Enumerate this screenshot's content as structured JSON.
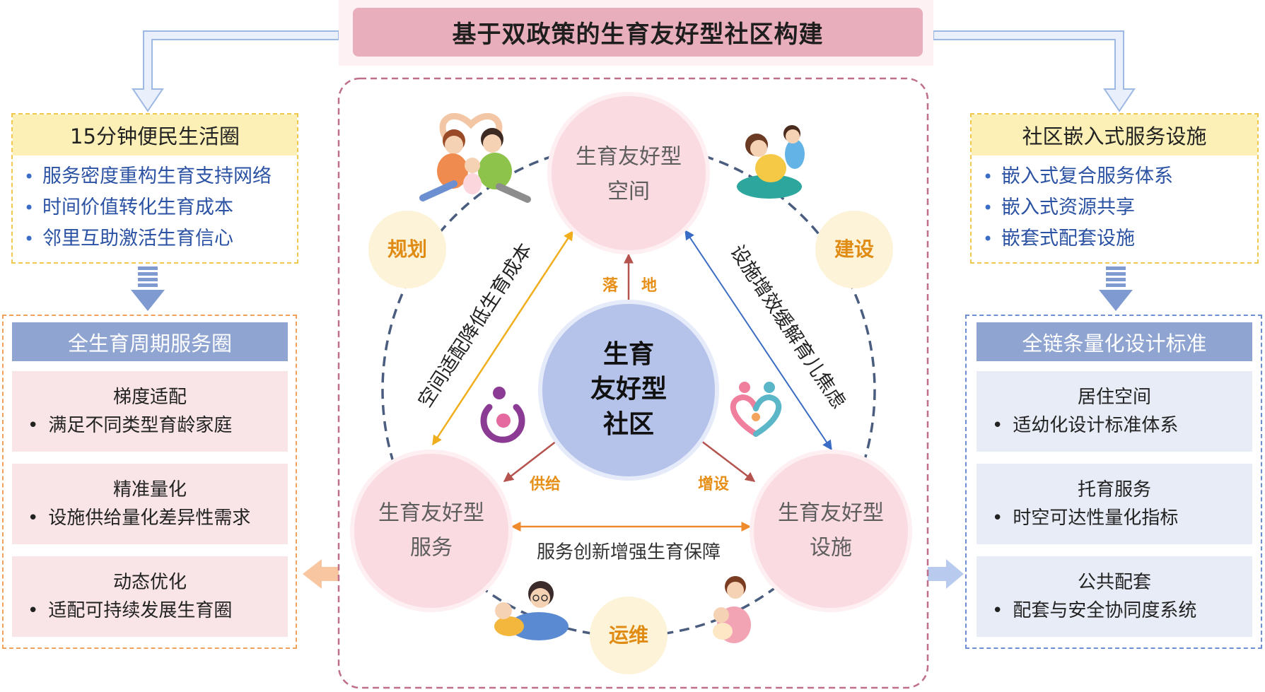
{
  "title": "基于双政策的生育友好型社区构建",
  "left_top": {
    "header": "15分钟便民生活圈",
    "items": [
      "服务密度重构生育支持网络",
      "时间价值转化生育成本",
      "邻里互助激活生育信心"
    ]
  },
  "left_bottom": {
    "header": "全生育周期服务圈",
    "cards": [
      {
        "title": "梯度适配",
        "item": "满足不同类型育龄家庭"
      },
      {
        "title": "精准量化",
        "item": "设施供给量化差异性需求"
      },
      {
        "title": "动态优化",
        "item": "适配可持续发展生育圈"
      }
    ]
  },
  "right_top": {
    "header": "社区嵌入式服务设施",
    "items": [
      "嵌入式复合服务体系",
      "嵌入式资源共享",
      "嵌套式配套设施"
    ]
  },
  "right_bottom": {
    "header": "全链条量化设计标准",
    "cards": [
      {
        "title": "居住空间",
        "item": "适幼化设计标准体系"
      },
      {
        "title": "托育服务",
        "item": "时空可达性量化指标"
      },
      {
        "title": "公共配套",
        "item": "配套与安全协同度系统"
      }
    ]
  },
  "center": {
    "core": [
      "生育",
      "友好型",
      "社区"
    ],
    "space": [
      "生育友好型",
      "空间"
    ],
    "service": [
      "生育友好型",
      "服务"
    ],
    "facility": [
      "生育友好型",
      "设施"
    ],
    "stages": {
      "plan": "规划",
      "build": "建设",
      "operate": "运维"
    },
    "links": {
      "land": [
        "落",
        "地"
      ],
      "supply": "供给",
      "add": "增设",
      "service_facility": "服务创新增强生育保障",
      "space_service": "空间适配降低生育成本",
      "space_facility": "设施增效缓解育儿焦虑"
    }
  },
  "colors": {
    "title-bg": "#e8aebb",
    "yellow-hdr": "#fcf0b6",
    "slate-hdr": "#8fa4d1",
    "pink-card": "#f9e5e7",
    "blue-card": "#e8ecf7",
    "item-blue": "#2b52a3"
  }
}
